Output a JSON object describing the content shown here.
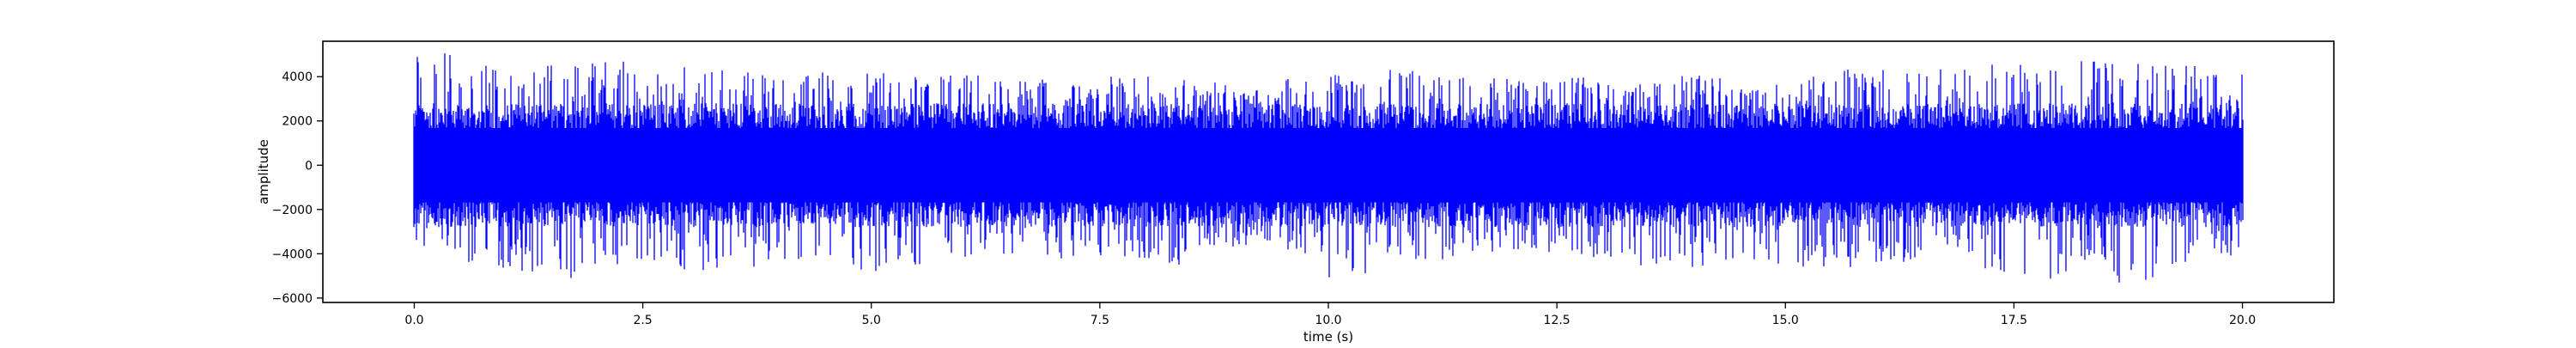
{
  "chart_data": {
    "type": "line",
    "title": "",
    "xlabel": "time (s)",
    "ylabel": "amplitude",
    "xlim": [
      -1.0,
      21.0
    ],
    "ylim": [
      -6200,
      5600
    ],
    "x_ticks": [
      0.0,
      2.5,
      5.0,
      7.5,
      10.0,
      12.5,
      15.0,
      17.5,
      20.0
    ],
    "x_tick_labels": [
      "0.0",
      "2.5",
      "5.0",
      "7.5",
      "10.0",
      "12.5",
      "15.0",
      "17.5",
      "20.0"
    ],
    "y_ticks": [
      4000,
      2000,
      0,
      -2000,
      -4000,
      -6000
    ],
    "y_tick_labels": [
      "4000",
      "2000",
      "0",
      "−2000",
      "−4000",
      "−6000"
    ],
    "grid": false,
    "legend": "none",
    "series": [
      {
        "color": "#0000ff",
        "x_range": [
          0.0,
          20.0
        ],
        "envelope_min": [
          -4400,
          -4600,
          -4800,
          -5200,
          -4500,
          -4400,
          -4900,
          -4600,
          -4300,
          -4200,
          -4800,
          -4500,
          -4400,
          -4000,
          -4300,
          -4100,
          -4200,
          -4500,
          -3700,
          -3600,
          -4300,
          -5400,
          -4100,
          -4300,
          -3900,
          -3800,
          -4200,
          -4300,
          -4600,
          -4700,
          -4300,
          -4800,
          -4700,
          -4600,
          -4400,
          -4100,
          -5200,
          -5500,
          -4300,
          -5300,
          -4800,
          -4300
        ],
        "envelope_max": [
          5100,
          4500,
          4300,
          4600,
          4800,
          4200,
          4500,
          4300,
          4100,
          4200,
          4200,
          4000,
          4100,
          3800,
          4000,
          3700,
          4000,
          3900,
          3800,
          3400,
          3900,
          4200,
          4300,
          4100,
          4000,
          3900,
          4000,
          3900,
          3700,
          4200,
          3500,
          4100,
          4400,
          4300,
          4200,
          4400,
          4600,
          4400,
          4700,
          4600,
          4500,
          4100
        ],
        "core_amplitude": 2800
      }
    ]
  }
}
